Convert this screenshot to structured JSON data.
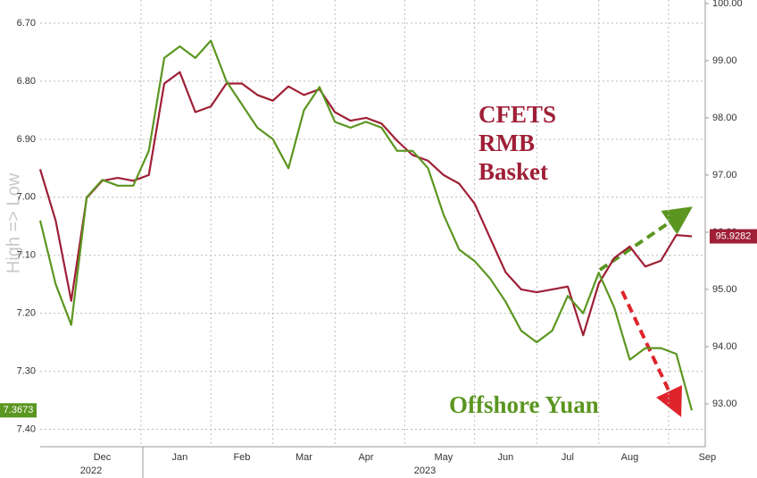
{
  "chart_data": {
    "type": "line",
    "y_label": "High => Low",
    "categories": [
      null,
      null,
      null,
      null,
      "Dec",
      null,
      null,
      null,
      null,
      "Jan",
      null,
      null,
      null,
      "Feb",
      null,
      null,
      null,
      "Mar",
      null,
      null,
      null,
      "Apr",
      null,
      null,
      null,
      null,
      "May",
      null,
      null,
      null,
      "Jun",
      null,
      null,
      null,
      "Jul",
      null,
      null,
      null,
      "Aug",
      null,
      null,
      null,
      null,
      "Sep"
    ],
    "years": [
      "2022",
      "2023"
    ],
    "series": [
      {
        "name": "CFETS RMB Basket",
        "color": "#9e1f36",
        "axis": "y2",
        "values": [
          97.1,
          96.2,
          94.8,
          96.6,
          96.9,
          96.95,
          96.9,
          97.0,
          98.6,
          98.8,
          98.1,
          98.2,
          98.6,
          98.6,
          98.4,
          98.3,
          98.55,
          98.4,
          98.5,
          98.1,
          97.95,
          98.0,
          97.9,
          97.6,
          97.35,
          97.25,
          97.0,
          96.85,
          96.5,
          95.9,
          95.3,
          95.0,
          94.95,
          95.0,
          95.05,
          94.2,
          95.1,
          95.55,
          95.75,
          95.4,
          95.5,
          95.95,
          95.9282,
          null
        ]
      },
      {
        "name": "Offshore Yuan",
        "color": "#5b9620",
        "values": [
          7.04,
          7.15,
          7.22,
          7.0,
          6.97,
          6.98,
          6.98,
          6.92,
          6.76,
          6.74,
          6.76,
          6.73,
          6.8,
          6.84,
          6.88,
          6.9,
          6.95,
          6.85,
          6.81,
          6.87,
          6.88,
          6.87,
          6.88,
          6.92,
          6.92,
          6.95,
          7.03,
          7.09,
          7.11,
          7.14,
          7.18,
          7.23,
          7.25,
          7.23,
          7.17,
          7.2,
          7.13,
          7.19,
          7.28,
          7.26,
          7.26,
          7.27,
          7.3673,
          null
        ]
      }
    ],
    "ylim": [
      6.66,
      7.43
    ],
    "y_inverted": true,
    "yticks": [
      {
        "value": 6.7,
        "label": "6.70"
      },
      {
        "value": 6.8,
        "label": "6.80"
      },
      {
        "value": 6.9,
        "label": "6.90"
      },
      {
        "value": 7.0,
        "label": "7.00"
      },
      {
        "value": 7.1,
        "label": "7.10"
      },
      {
        "value": 7.2,
        "label": "7.20"
      },
      {
        "value": 7.3,
        "label": "7.30"
      },
      {
        "value": 7.4,
        "label": "7.40"
      }
    ],
    "y2lim": [
      92.25,
      100.06
    ],
    "y2ticks": [
      {
        "value": 93,
        "label": "93.00"
      },
      {
        "value": 94,
        "label": "94.00"
      },
      {
        "value": 95,
        "label": "95.00"
      },
      {
        "value": 96,
        "label": "96.00"
      },
      {
        "value": 97,
        "label": "97.00"
      },
      {
        "value": 98,
        "label": "98.00"
      },
      {
        "value": 99,
        "label": "99.00"
      },
      {
        "value": 100,
        "label": "100.00"
      }
    ],
    "grid": true
  }
}
